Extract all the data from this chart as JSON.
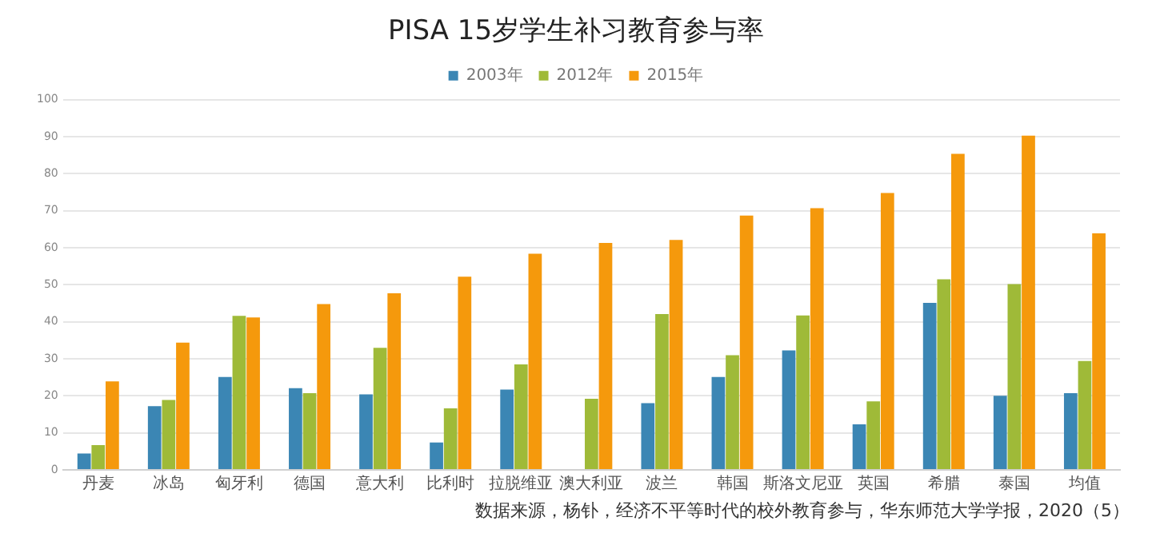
{
  "chart_data": {
    "type": "bar",
    "title": "PISA 15岁学生补习教育参与率",
    "categories": [
      "丹麦",
      "冰岛",
      "匈牙利",
      "德国",
      "意大利",
      "比利时",
      "拉脱维亚",
      "澳大利亚",
      "波兰",
      "韩国",
      "斯洛文尼亚",
      "英国",
      "希腊",
      "泰国",
      "均值"
    ],
    "series": [
      {
        "name": "2003年",
        "color": "#3b86b4",
        "values": [
          4.4,
          17.2,
          25.1,
          22.1,
          20.4,
          7.4,
          21.7,
          null,
          18.0,
          25.1,
          32.3,
          12.3,
          45.1,
          20.0,
          20.7
        ]
      },
      {
        "name": "2012年",
        "color": "#9fba38",
        "values": [
          6.7,
          18.9,
          41.6,
          20.7,
          33.0,
          16.6,
          28.5,
          19.2,
          42.1,
          31.0,
          41.7,
          18.5,
          51.5,
          50.2,
          29.4
        ]
      },
      {
        "name": "2015年",
        "color": "#f5990c",
        "values": [
          23.9,
          34.4,
          41.2,
          44.8,
          47.7,
          52.2,
          58.4,
          61.3,
          62.1,
          68.7,
          70.7,
          74.8,
          85.4,
          90.3,
          63.9
        ]
      }
    ],
    "ylim": [
      0,
      100
    ],
    "yticks": [
      0,
      10,
      20,
      30,
      40,
      50,
      60,
      70,
      80,
      90,
      100
    ],
    "grid": "y",
    "legend": "top",
    "annotations": [
      "数据来源，杨钋，经济不平等时代的校外教育参与，华东师范大学学报，2020（5）"
    ]
  }
}
